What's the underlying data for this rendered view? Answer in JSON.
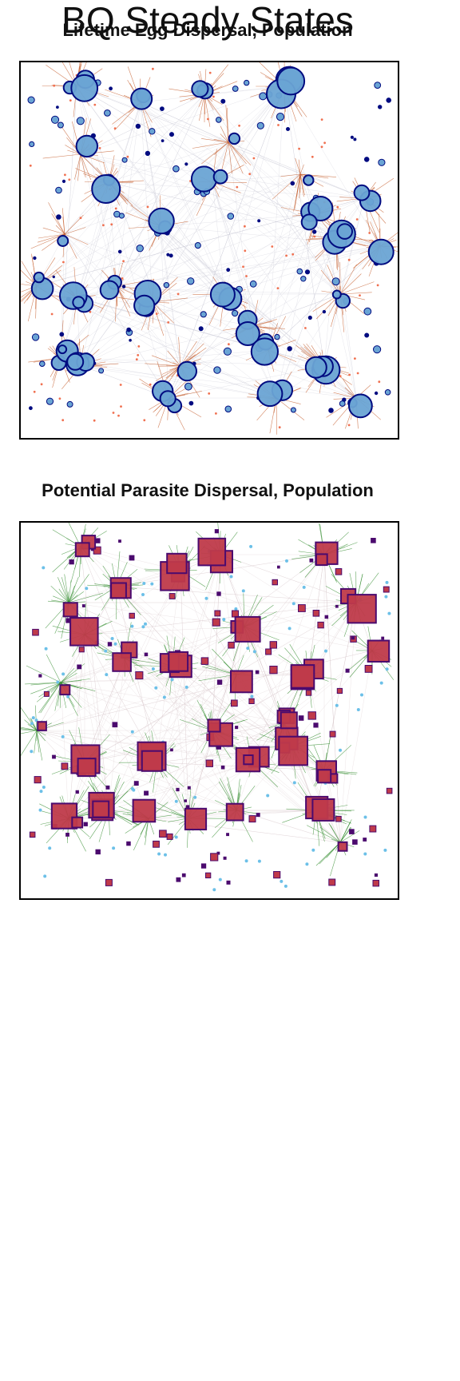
{
  "figure": {
    "suptitle": "BQ Steady States"
  },
  "panels": [
    {
      "title": "Lifetime Egg Dispersal, Population",
      "node_shape": "circle",
      "node_fill": "#6aa4d4",
      "node_stroke": "#000b80",
      "edge_color": "#c45a28",
      "background_edge_color": "#c9c9d6",
      "scatter_dot_color": "#f07050",
      "minor_dot_color": "#000b80"
    },
    {
      "title": "Potential Parasite Dispersal, Population",
      "node_shape": "square",
      "node_fill": "#bf3a4a",
      "node_stroke": "#4b0a6e",
      "edge_color": "#2f8a2a",
      "background_edge_color": "#d8c8cc",
      "scatter_dot_color": "#6cc0e8",
      "minor_dot_color": "#4b0a6e"
    }
  ]
}
